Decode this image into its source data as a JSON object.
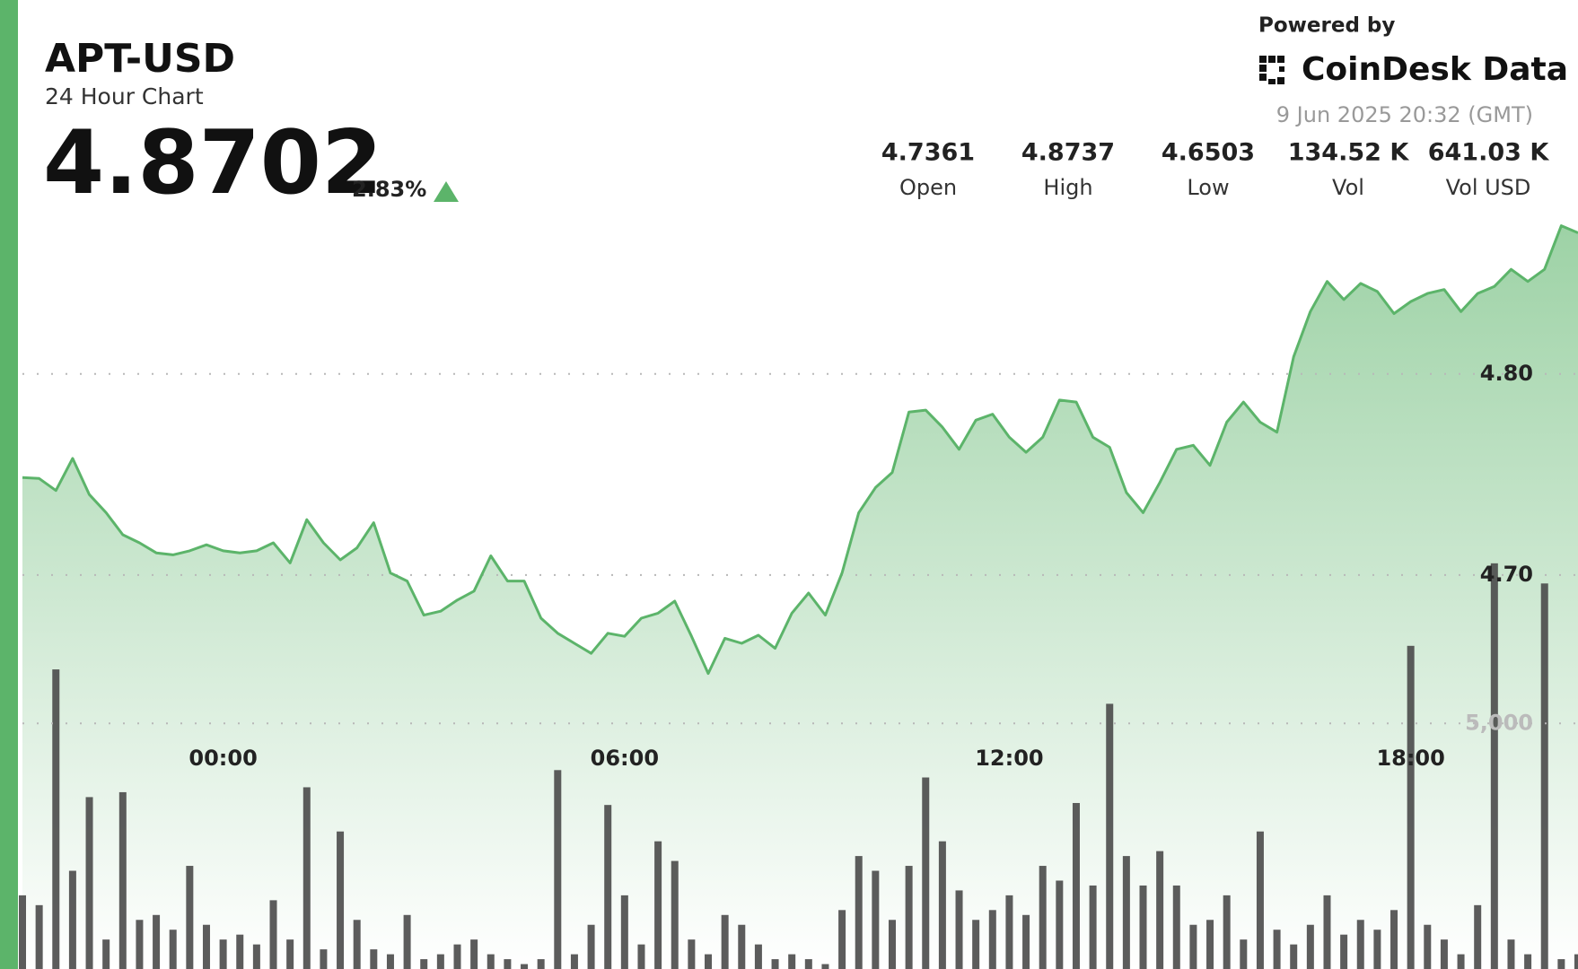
{
  "header": {
    "symbol": "APT-USD",
    "subtitle": "24 Hour Chart",
    "price": "4.8702",
    "change": "2.83%",
    "powered_by": "Powered by",
    "brand": "CoinDesk Data",
    "timestamp": "9 Jun 2025 20:32 (GMT)"
  },
  "stats": [
    {
      "value": "4.7361",
      "label": "Open"
    },
    {
      "value": "4.8737",
      "label": "High"
    },
    {
      "value": "4.6503",
      "label": "Low"
    },
    {
      "value": "134.52 K",
      "label": "Vol"
    },
    {
      "value": "641.03 K",
      "label": "Vol USD"
    }
  ],
  "chart_data": {
    "type": "line",
    "grid": true,
    "categories": [
      null,
      null,
      null,
      null,
      null,
      null,
      null,
      null,
      null,
      null,
      null,
      null,
      "00:00",
      null,
      null,
      null,
      null,
      null,
      null,
      null,
      null,
      null,
      null,
      null,
      null,
      null,
      null,
      null,
      null,
      null,
      null,
      null,
      null,
      null,
      null,
      null,
      "06:00",
      null,
      null,
      null,
      null,
      null,
      null,
      null,
      null,
      null,
      null,
      null,
      null,
      null,
      null,
      null,
      null,
      null,
      null,
      null,
      null,
      null,
      null,
      "12:00",
      null,
      null,
      null,
      null,
      null,
      null,
      null,
      null,
      null,
      null,
      null,
      null,
      null,
      null,
      null,
      null,
      null,
      null,
      null,
      null,
      null,
      null,
      null,
      "18:00",
      null,
      null,
      null,
      null,
      null,
      null,
      null,
      null,
      null,
      null
    ],
    "series": [
      {
        "name": "Price",
        "color": "#5cb46a",
        "values": [
          4.7485,
          4.748,
          4.742,
          4.758,
          4.74,
          4.731,
          4.72,
          4.716,
          4.711,
          4.71,
          4.712,
          4.715,
          4.712,
          4.711,
          4.712,
          4.716,
          4.706,
          4.7275,
          4.716,
          4.7075,
          4.7135,
          4.726,
          4.701,
          4.697,
          4.68,
          4.682,
          4.6875,
          4.692,
          4.7095,
          4.697,
          4.697,
          4.6785,
          4.671,
          4.666,
          4.661,
          4.671,
          4.6695,
          4.6785,
          4.681,
          4.687,
          4.6695,
          4.651,
          4.6685,
          4.666,
          4.67,
          4.6635,
          4.681,
          4.691,
          4.68,
          4.701,
          4.731,
          4.7435,
          4.751,
          4.781,
          4.782,
          4.7735,
          4.7625,
          4.777,
          4.78,
          4.7685,
          4.761,
          4.7685,
          4.787,
          4.786,
          4.7685,
          4.7635,
          4.741,
          4.731,
          4.746,
          4.7625,
          4.7645,
          4.7545,
          4.776,
          4.786,
          4.776,
          4.771,
          4.8085,
          4.831,
          4.846,
          4.837,
          4.845,
          4.841,
          4.83,
          4.836,
          4.84,
          4.842,
          4.831,
          4.84,
          4.8435,
          4.852,
          4.846,
          4.852,
          4.8737,
          4.8702
        ]
      },
      {
        "name": "Volume",
        "color": "#4a4a4a",
        "axis": "y2",
        "values": [
          1500,
          1300,
          6100,
          2000,
          3500,
          600,
          3600,
          1000,
          1100,
          800,
          2100,
          900,
          600,
          700,
          500,
          1400,
          600,
          3700,
          400,
          2800,
          1000,
          400,
          300,
          1100,
          200,
          300,
          500,
          600,
          300,
          200,
          100,
          200,
          4050,
          300,
          900,
          3340,
          1500,
          500,
          2600,
          2200,
          600,
          300,
          1100,
          900,
          500,
          200,
          300,
          200,
          100,
          1200,
          2300,
          2000,
          1000,
          2100,
          3900,
          2600,
          1600,
          1000,
          1200,
          1500,
          1100,
          2100,
          1800,
          3380,
          1700,
          5400,
          2300,
          1700,
          2400,
          1700,
          900,
          1000,
          1500,
          600,
          2800,
          800,
          500,
          900,
          1500,
          700,
          1000,
          800,
          1200,
          6580,
          900,
          600,
          300,
          1300,
          8260,
          600,
          300,
          7850,
          200,
          300
        ]
      }
    ],
    "ylim": [
      4.504,
      4.986
    ],
    "yticks": [
      {
        "value": 4.7,
        "label": "4.70"
      },
      {
        "value": 4.8,
        "label": "4.80"
      }
    ],
    "y2lim": [
      0,
      19730
    ],
    "y2ticks": [
      {
        "value": 5000,
        "label": "5,000"
      }
    ]
  }
}
